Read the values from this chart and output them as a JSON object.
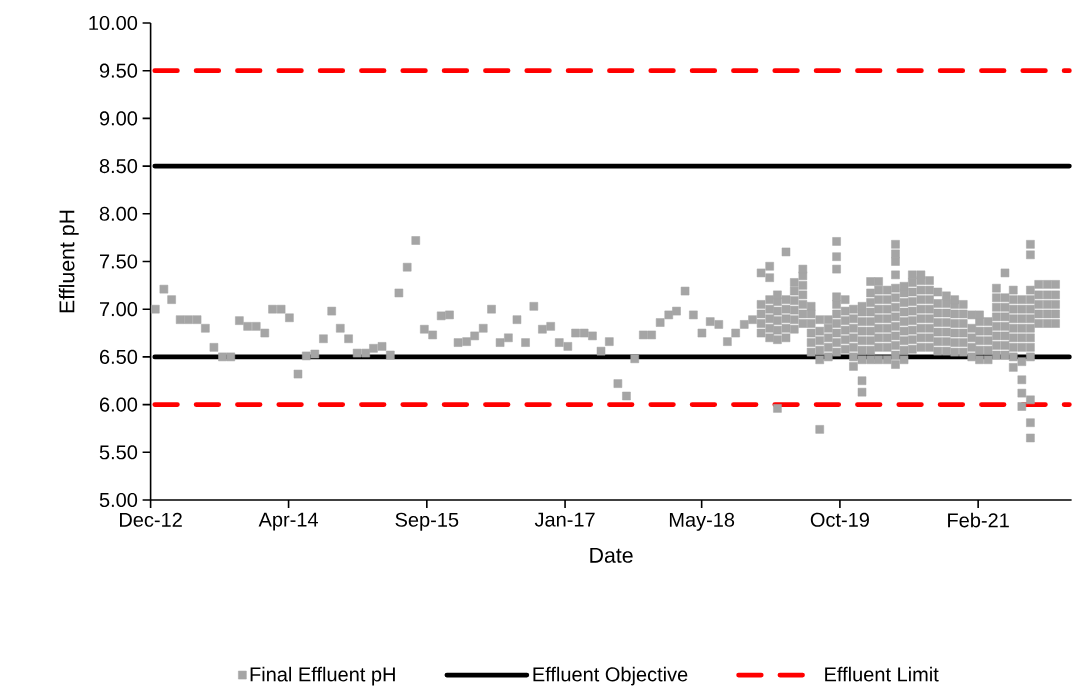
{
  "chart_data": {
    "type": "scatter",
    "xlabel": "Date",
    "ylabel": "Effluent pH",
    "xlim": [
      "2012-12-15",
      "2022-01-28"
    ],
    "ylim": [
      5,
      10
    ],
    "xticks": [
      {
        "value": "2012-12-15",
        "label": "Dec-12"
      },
      {
        "value": "2014-04-28",
        "label": "Apr-14"
      },
      {
        "value": "2015-09-10",
        "label": "Sep-15"
      },
      {
        "value": "2017-01-22",
        "label": "Jan-17"
      },
      {
        "value": "2018-05-31",
        "label": "May-18"
      },
      {
        "value": "2019-10-13",
        "label": "Oct-19"
      },
      {
        "value": "2021-02-24",
        "label": "Feb-21"
      }
    ],
    "yticks": [
      {
        "value": 5,
        "label": "5.00"
      },
      {
        "value": 5.5,
        "label": "5.50"
      },
      {
        "value": 6,
        "label": "6.00"
      },
      {
        "value": 6.5,
        "label": "6.50"
      },
      {
        "value": 7,
        "label": "7.00"
      },
      {
        "value": 7.5,
        "label": "7.50"
      },
      {
        "value": 8,
        "label": "8.00"
      },
      {
        "value": 8.5,
        "label": "8.50"
      },
      {
        "value": 9,
        "label": "9.00"
      },
      {
        "value": 9.5,
        "label": "9.50"
      },
      {
        "value": 10,
        "label": "10.00"
      }
    ],
    "grid": false,
    "legend": "bottom",
    "series": [
      {
        "name": "Final Effluent pH",
        "marker": "square",
        "color": "#a5a5a5",
        "x": [
          "2013-01",
          "2013-02",
          "2013-03",
          "2013-04",
          "2013-05",
          "2013-06",
          "2013-07",
          "2013-08",
          "2013-09",
          "2013-10",
          "2013-11",
          "2013-12",
          "2014-01",
          "2014-02",
          "2014-03",
          "2014-04",
          "2014-05",
          "2014-06",
          "2014-07",
          "2014-08",
          "2014-09",
          "2014-10",
          "2014-11",
          "2014-12",
          "2015-01",
          "2015-02",
          "2015-03",
          "2015-04",
          "2015-05",
          "2015-06",
          "2015-07",
          "2015-08",
          "2015-09",
          "2015-10",
          "2015-11",
          "2015-12",
          "2016-01",
          "2016-02",
          "2016-03",
          "2016-04",
          "2016-05",
          "2016-06",
          "2016-07",
          "2016-08",
          "2016-09",
          "2016-10",
          "2016-11",
          "2016-12",
          "2017-01",
          "2017-02",
          "2017-03",
          "2017-04",
          "2017-05",
          "2017-06",
          "2017-07",
          "2017-08",
          "2017-09",
          "2017-10",
          "2017-11",
          "2017-12",
          "2018-01",
          "2018-02",
          "2018-03",
          "2018-04",
          "2018-05",
          "2018-06",
          "2018-07",
          "2018-08",
          "2018-09",
          "2018-10",
          "2018-11",
          "2018-12",
          "2019-01",
          "2019-01",
          "2019-01",
          "2019-01",
          "2019-01",
          "2019-02",
          "2019-02",
          "2019-02",
          "2019-02",
          "2019-02",
          "2019-02",
          "2019-02",
          "2019-03",
          "2019-03",
          "2019-03",
          "2019-03",
          "2019-03",
          "2019-03",
          "2019-03",
          "2019-04",
          "2019-04",
          "2019-04",
          "2019-04",
          "2019-04",
          "2019-04",
          "2019-05",
          "2019-05",
          "2019-05",
          "2019-05",
          "2019-05",
          "2019-05",
          "2019-06",
          "2019-06",
          "2019-06",
          "2019-06",
          "2019-06",
          "2019-06",
          "2019-06",
          "2019-07",
          "2019-07",
          "2019-07",
          "2019-07",
          "2019-07",
          "2019-07",
          "2019-08",
          "2019-08",
          "2019-08",
          "2019-08",
          "2019-08",
          "2019-08",
          "2019-09",
          "2019-09",
          "2019-09",
          "2019-09",
          "2019-09",
          "2019-10",
          "2019-10",
          "2019-10",
          "2019-10",
          "2019-10",
          "2019-10",
          "2019-10",
          "2019-10",
          "2019-10",
          "2019-10",
          "2019-11",
          "2019-11",
          "2019-11",
          "2019-11",
          "2019-11",
          "2019-11",
          "2019-12",
          "2019-12",
          "2019-12",
          "2019-12",
          "2019-12",
          "2019-12",
          "2019-12",
          "2020-01",
          "2020-01",
          "2020-01",
          "2020-01",
          "2020-01",
          "2020-01",
          "2020-01",
          "2020-01",
          "2020-01",
          "2020-02",
          "2020-02",
          "2020-02",
          "2020-02",
          "2020-02",
          "2020-02",
          "2020-02",
          "2020-02",
          "2020-02",
          "2020-03",
          "2020-03",
          "2020-03",
          "2020-03",
          "2020-03",
          "2020-03",
          "2020-03",
          "2020-03",
          "2020-03",
          "2020-04",
          "2020-04",
          "2020-04",
          "2020-04",
          "2020-04",
          "2020-04",
          "2020-04",
          "2020-04",
          "2020-05",
          "2020-05",
          "2020-05",
          "2020-05",
          "2020-05",
          "2020-05",
          "2020-05",
          "2020-05",
          "2020-05",
          "2020-05",
          "2020-05",
          "2020-05",
          "2020-05",
          "2020-06",
          "2020-06",
          "2020-06",
          "2020-06",
          "2020-06",
          "2020-06",
          "2020-06",
          "2020-06",
          "2020-06",
          "2020-07",
          "2020-07",
          "2020-07",
          "2020-07",
          "2020-07",
          "2020-07",
          "2020-07",
          "2020-07",
          "2020-07",
          "2020-08",
          "2020-08",
          "2020-08",
          "2020-08",
          "2020-08",
          "2020-08",
          "2020-08",
          "2020-08",
          "2020-08",
          "2020-09",
          "2020-09",
          "2020-09",
          "2020-09",
          "2020-09",
          "2020-09",
          "2020-09",
          "2020-09",
          "2020-10",
          "2020-10",
          "2020-10",
          "2020-10",
          "2020-10",
          "2020-10",
          "2020-10",
          "2020-11",
          "2020-11",
          "2020-11",
          "2020-11",
          "2020-11",
          "2020-11",
          "2020-11",
          "2020-12",
          "2020-12",
          "2020-12",
          "2020-12",
          "2020-12",
          "2020-12",
          "2020-12",
          "2021-01",
          "2021-01",
          "2021-01",
          "2021-01",
          "2021-01",
          "2021-01",
          "2021-02",
          "2021-02",
          "2021-02",
          "2021-02",
          "2021-02",
          "2021-03",
          "2021-03",
          "2021-03",
          "2021-03",
          "2021-03",
          "2021-03",
          "2021-04",
          "2021-04",
          "2021-04",
          "2021-04",
          "2021-04",
          "2021-05",
          "2021-05",
          "2021-05",
          "2021-05",
          "2021-05",
          "2021-05",
          "2021-05",
          "2021-05",
          "2021-06",
          "2021-06",
          "2021-06",
          "2021-06",
          "2021-06",
          "2021-06",
          "2021-06",
          "2021-06",
          "2021-07",
          "2021-07",
          "2021-07",
          "2021-07",
          "2021-07",
          "2021-07",
          "2021-07",
          "2021-07",
          "2021-07",
          "2021-08",
          "2021-08",
          "2021-08",
          "2021-08",
          "2021-08",
          "2021-08",
          "2021-08",
          "2021-08",
          "2021-08",
          "2021-08",
          "2021-09",
          "2021-09",
          "2021-09",
          "2021-09",
          "2021-09",
          "2021-09",
          "2021-09",
          "2021-09",
          "2021-09",
          "2021-09",
          "2021-09",
          "2021-09",
          "2021-09",
          "2021-10",
          "2021-10",
          "2021-10",
          "2021-10",
          "2021-10",
          "2021-11",
          "2021-11",
          "2021-11",
          "2021-11",
          "2021-11",
          "2021-12",
          "2021-12",
          "2021-12",
          "2021-12",
          "2021-12"
        ],
        "values": [
          7.0,
          7.21,
          7.1,
          6.89,
          6.89,
          6.89,
          6.8,
          6.6,
          6.5,
          6.5,
          6.88,
          6.82,
          6.82,
          6.75,
          7.0,
          7.0,
          6.91,
          6.32,
          6.51,
          6.53,
          6.69,
          6.98,
          6.8,
          6.69,
          6.54,
          6.54,
          6.59,
          6.61,
          6.52,
          7.17,
          7.44,
          7.72,
          6.79,
          6.73,
          6.93,
          6.94,
          6.65,
          6.66,
          6.72,
          6.8,
          7.0,
          6.65,
          6.7,
          6.89,
          6.65,
          7.03,
          6.79,
          6.82,
          6.65,
          6.61,
          6.75,
          6.75,
          6.72,
          6.56,
          6.66,
          6.22,
          6.09,
          6.48,
          6.73,
          6.73,
          6.86,
          6.94,
          6.98,
          7.19,
          6.94,
          6.75,
          6.87,
          6.84,
          6.66,
          6.75,
          6.84,
          6.89,
          6.75,
          6.85,
          6.95,
          7.05,
          7.38,
          6.7,
          6.8,
          6.9,
          7.0,
          7.1,
          7.33,
          7.45,
          5.96,
          6.68,
          6.78,
          6.88,
          6.98,
          7.08,
          7.15,
          6.7,
          6.8,
          6.9,
          7.0,
          7.1,
          7.6,
          6.79,
          6.89,
          6.99,
          7.09,
          7.19,
          7.28,
          6.85,
          6.95,
          7.05,
          7.15,
          7.25,
          7.35,
          7.42,
          6.55,
          6.65,
          6.75,
          6.85,
          6.95,
          7.03,
          5.74,
          6.47,
          6.57,
          6.67,
          6.77,
          6.89,
          6.5,
          6.6,
          6.7,
          6.8,
          6.89,
          6.55,
          6.65,
          6.75,
          6.85,
          6.95,
          7.05,
          7.13,
          7.42,
          7.55,
          7.71,
          6.58,
          6.68,
          6.78,
          6.88,
          6.98,
          7.1,
          6.4,
          6.5,
          6.6,
          6.7,
          6.8,
          6.9,
          7.0,
          6.13,
          6.25,
          6.47,
          6.57,
          6.67,
          6.77,
          6.87,
          6.97,
          7.03,
          6.47,
          6.57,
          6.67,
          6.77,
          6.87,
          6.97,
          7.07,
          7.17,
          7.29,
          6.47,
          6.6,
          6.7,
          6.8,
          6.9,
          7.0,
          7.1,
          7.2,
          7.29,
          6.47,
          6.6,
          6.7,
          6.8,
          6.9,
          7.0,
          7.1,
          7.2,
          6.42,
          6.52,
          6.62,
          6.72,
          6.82,
          6.92,
          7.02,
          7.12,
          7.22,
          7.36,
          7.5,
          7.58,
          7.68,
          6.47,
          6.57,
          6.67,
          6.77,
          6.87,
          6.97,
          7.07,
          7.17,
          7.24,
          6.58,
          6.68,
          6.78,
          6.88,
          6.98,
          7.08,
          7.18,
          7.28,
          7.36,
          6.6,
          6.7,
          6.8,
          6.9,
          7.0,
          7.1,
          7.2,
          7.3,
          7.36,
          6.6,
          6.7,
          6.8,
          6.9,
          7.0,
          7.1,
          7.2,
          7.3,
          6.56,
          6.66,
          6.76,
          6.86,
          6.96,
          7.06,
          7.18,
          6.56,
          6.66,
          6.76,
          6.86,
          6.96,
          7.06,
          7.14,
          6.55,
          6.65,
          6.75,
          6.85,
          6.95,
          7.05,
          7.1,
          6.55,
          6.65,
          6.75,
          6.85,
          6.95,
          7.05,
          6.5,
          6.6,
          6.7,
          6.8,
          6.94,
          6.47,
          6.57,
          6.67,
          6.77,
          6.87,
          6.94,
          6.47,
          6.57,
          6.67,
          6.77,
          6.87,
          6.52,
          6.62,
          6.72,
          6.82,
          6.92,
          7.02,
          7.12,
          7.22,
          6.52,
          6.62,
          6.72,
          6.82,
          6.92,
          7.02,
          7.12,
          7.38,
          6.39,
          6.5,
          6.6,
          6.7,
          6.8,
          6.9,
          7.0,
          7.1,
          7.2,
          5.98,
          6.12,
          6.26,
          6.45,
          6.6,
          6.7,
          6.8,
          6.9,
          7.0,
          7.1,
          5.65,
          5.81,
          6.05,
          6.5,
          6.6,
          6.7,
          6.8,
          6.9,
          7.0,
          7.1,
          7.2,
          7.57,
          7.68,
          6.85,
          6.95,
          7.05,
          7.15,
          7.26,
          6.85,
          6.95,
          7.05,
          7.15,
          7.26,
          6.85,
          6.95,
          7.05,
          7.15,
          7.26
        ]
      },
      {
        "name": "Effluent Objective",
        "type": "line",
        "line_style": "solid",
        "color": "#000000",
        "x": [
          "2012-12-30",
          "2022-01-20"
        ],
        "values": [
          8.5,
          8.5
        ]
      },
      {
        "type": "line",
        "line_style": "solid",
        "color": "#000000",
        "x": [
          "2012-12-30",
          "2022-01-20"
        ],
        "values": [
          6.5,
          6.5
        ]
      },
      {
        "name": "Effluent Limit",
        "type": "line",
        "line_style": "dashed",
        "color": "#ff0000",
        "x": [
          "2012-12-30",
          "2022-01-20"
        ],
        "values": [
          9.5,
          9.5
        ]
      },
      {
        "type": "line",
        "line_style": "dashed",
        "color": "#ff0000",
        "x": [
          "2012-12-30",
          "2022-01-20"
        ],
        "values": [
          6.0,
          6.0
        ]
      }
    ]
  }
}
